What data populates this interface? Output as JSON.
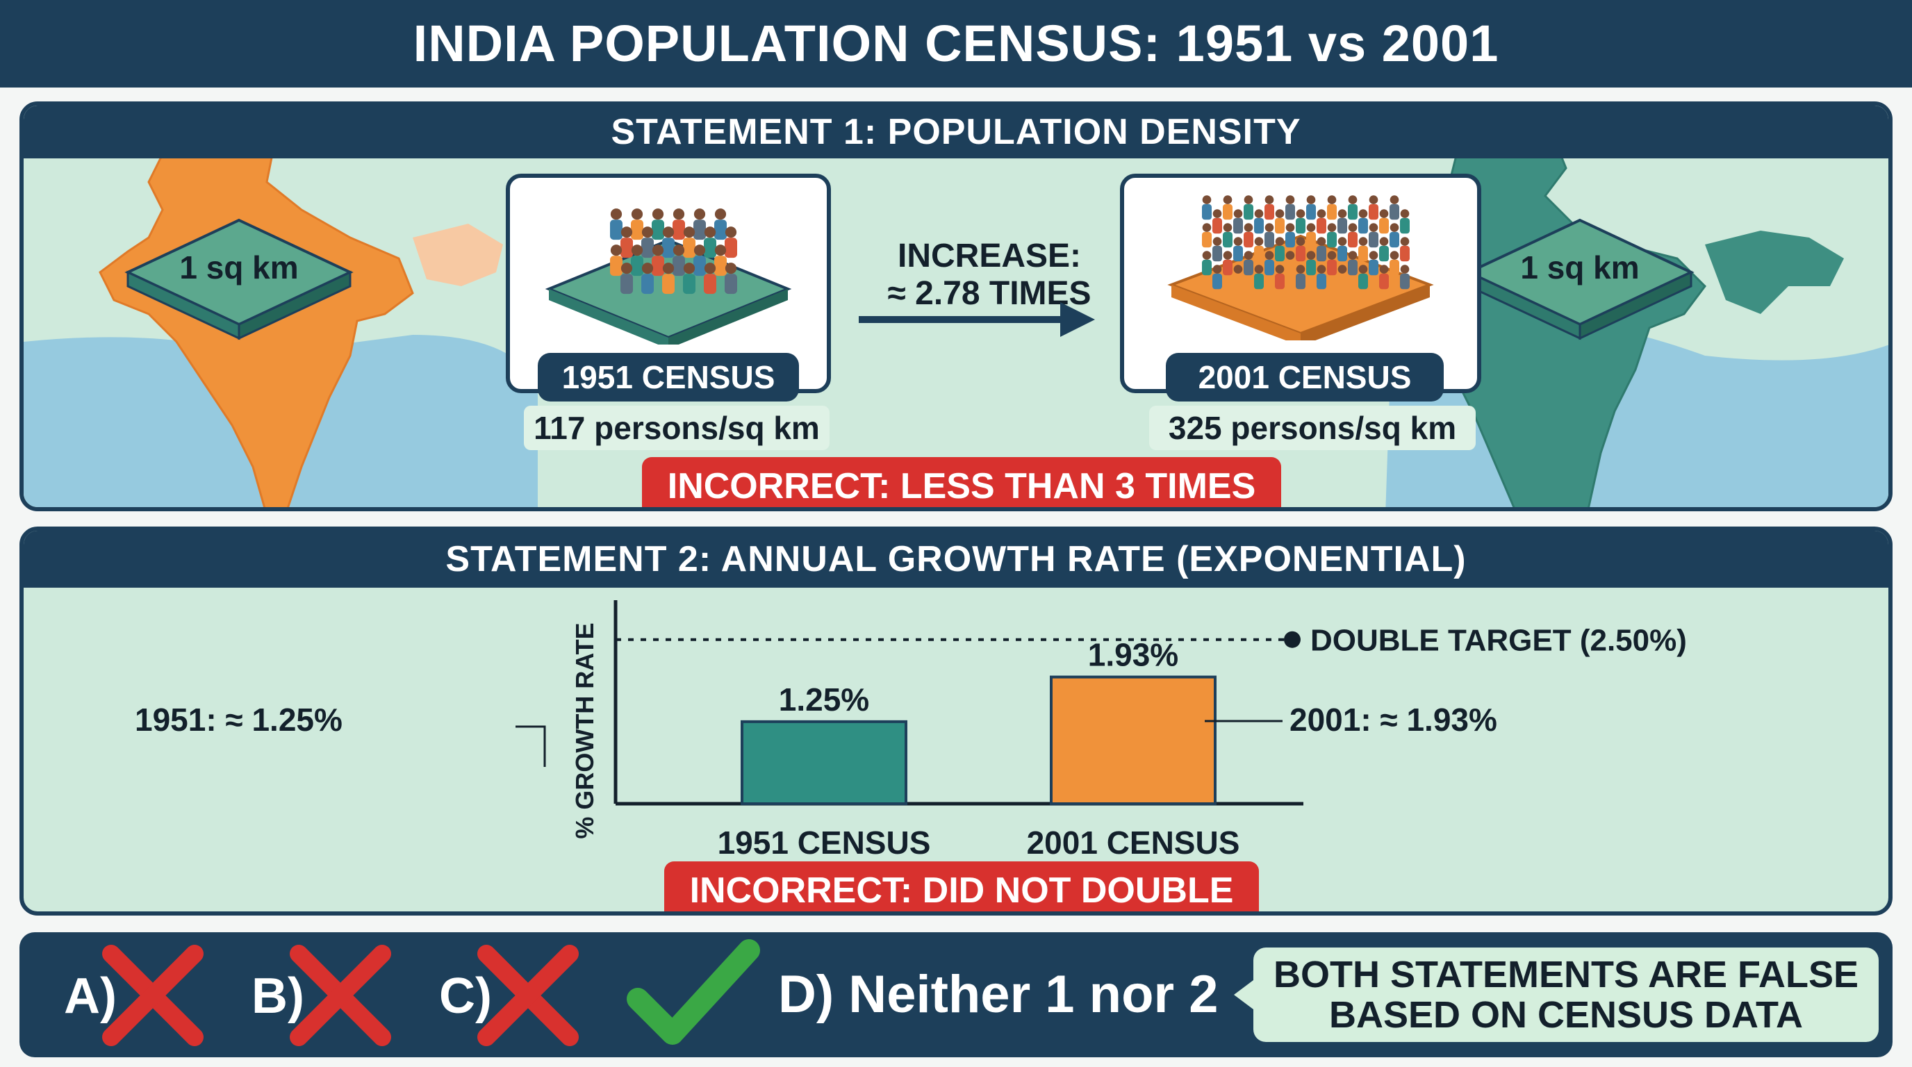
{
  "title": "INDIA POPULATION CENSUS: 1951 vs 2001",
  "statement1": {
    "header": "STATEMENT 1: POPULATION DENSITY",
    "tile_label": "1 sq km",
    "census_1951": {
      "label": "1951 CENSUS",
      "value": "117 persons/sq km"
    },
    "census_2001": {
      "label": "2001 CENSUS",
      "value": "325 persons/sq km"
    },
    "increase_line1": "INCREASE:",
    "increase_line2": "≈ 2.78 TIMES",
    "verdict": "INCORRECT: LESS THAN 3 TIMES"
  },
  "statement2": {
    "header": "STATEMENT 2: ANNUAL GROWTH RATE (EXPONENTIAL)",
    "left_annotation": "1951: ≈ 1.25%",
    "right_annotation": "2001: ≈ 1.93%",
    "verdict": "INCORRECT: DID NOT DOUBLE"
  },
  "chart_data": {
    "type": "bar",
    "categories": [
      "1951 CENSUS",
      "2001 CENSUS"
    ],
    "values": [
      1.25,
      1.93
    ],
    "value_labels": [
      "1.25%",
      "1.93%"
    ],
    "ylabel": "% GROWTH RATE",
    "ylim": [
      0,
      3.1
    ],
    "reference_line": {
      "value": 2.5,
      "label": "DOUBLE TARGET (2.50%)"
    },
    "colors": [
      "#2f8f83",
      "#f0923a"
    ]
  },
  "answers": {
    "options": [
      "A)",
      "B)",
      "C)"
    ],
    "correct": "D) Neither 1 nor 2",
    "callout_line1": "BOTH STATEMENTS ARE FALSE",
    "callout_line2": "BASED ON CENSUS DATA"
  },
  "colors": {
    "navy": "#1d3f5a",
    "teal": "#2f8f83",
    "orange": "#f0923a",
    "red": "#d8312e",
    "green": "#3aa845"
  }
}
